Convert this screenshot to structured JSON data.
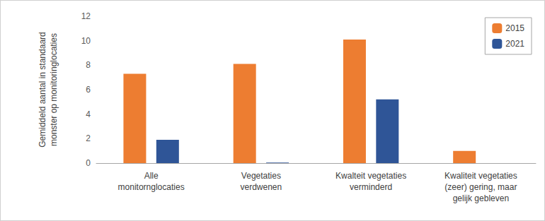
{
  "chart_data": {
    "type": "bar",
    "y_label": "Gemiddeld aantal in standaard\nmonster op monitoringlocaties",
    "categories": [
      "Alle\nmonitornglocaties",
      "Vegetaties\nverdwenen",
      "Kwalteit vegetaties\nverminderd",
      "Kwaliteit vegetaties\n(zeer) gering, maar\ngelijk gebleven"
    ],
    "series": [
      {
        "name": "2015",
        "color": "#ed7d31",
        "values": [
          7.3,
          8.1,
          10.1,
          1.0
        ]
      },
      {
        "name": "2021",
        "color": "#2f5597",
        "values": [
          1.9,
          0.05,
          5.2,
          0
        ]
      }
    ],
    "ylim": [
      0,
      12
    ],
    "yticks": [
      0,
      2,
      4,
      6,
      8,
      10,
      12
    ],
    "grid": false,
    "legend": "upper right"
  }
}
